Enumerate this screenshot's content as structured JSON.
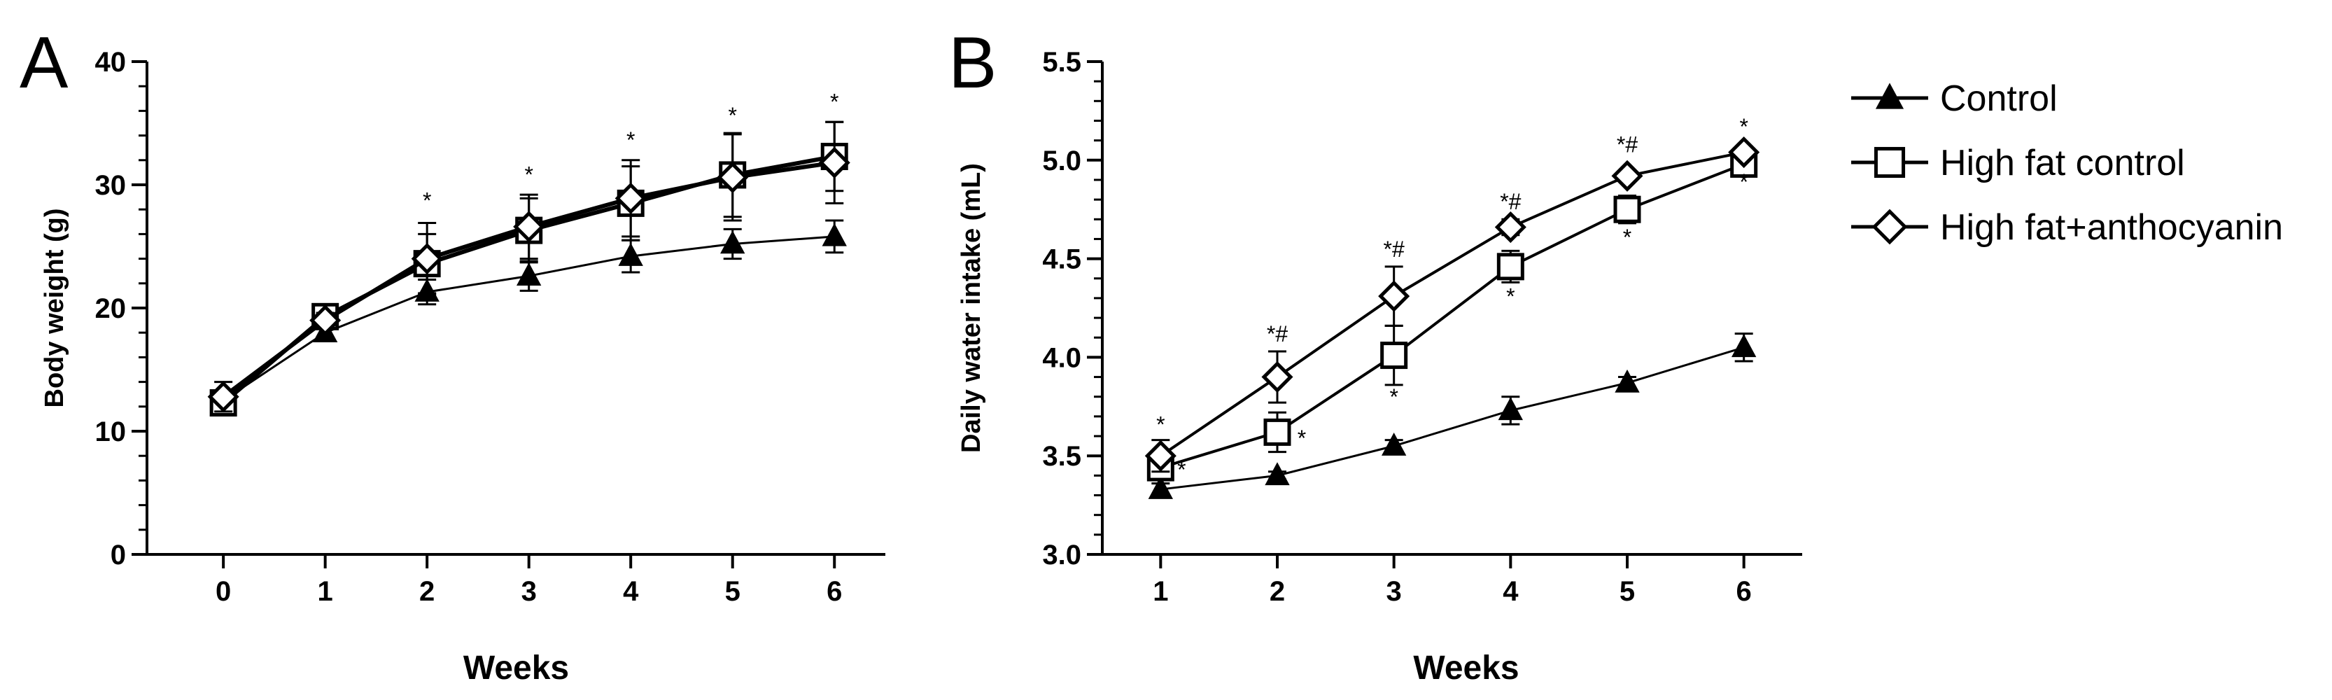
{
  "chart_data": [
    {
      "panel": "A",
      "type": "line",
      "xlabel": "Weeks",
      "ylabel": "Body weight  (g)",
      "x": [
        0,
        1,
        2,
        3,
        4,
        5,
        6
      ],
      "xlim": [
        -0.75,
        6.5
      ],
      "ylim": [
        0,
        40
      ],
      "xticks": [
        0,
        1,
        2,
        3,
        4,
        5,
        6
      ],
      "yticks": [
        0,
        10,
        20,
        30,
        40
      ],
      "series": [
        {
          "name": "Control",
          "marker": "triangle",
          "lineWidth": 3,
          "values": [
            12.5,
            18.0,
            21.3,
            22.6,
            24.2,
            25.2,
            25.8
          ],
          "errors": [
            0.8,
            0.6,
            1.0,
            1.2,
            1.3,
            1.2,
            1.3
          ]
        },
        {
          "name": "High fat control",
          "marker": "square",
          "lineWidth": 6,
          "values": [
            12.3,
            19.3,
            23.6,
            26.3,
            28.5,
            30.8,
            32.3
          ],
          "errors": [
            0.8,
            0.8,
            2.4,
            2.6,
            3.0,
            3.4,
            2.8
          ]
        },
        {
          "name": "High fat+anthocyanin",
          "marker": "diamond",
          "lineWidth": 6,
          "values": [
            12.8,
            19.0,
            24.0,
            26.6,
            28.9,
            30.6,
            31.8
          ],
          "errors": [
            1.2,
            0.6,
            2.9,
            2.6,
            3.1,
            3.5,
            3.3
          ]
        }
      ],
      "annotations": [
        {
          "text": "*",
          "x": 2,
          "y": 28.1
        },
        {
          "text": "*",
          "x": 3,
          "y": 30.2
        },
        {
          "text": "*",
          "x": 4,
          "y": 33.0
        },
        {
          "text": "*",
          "x": 5,
          "y": 35.0
        },
        {
          "text": "*",
          "x": 6,
          "y": 36.1
        }
      ]
    },
    {
      "panel": "B",
      "type": "line",
      "xlabel": "Weeks",
      "ylabel": "Daily water intake (mL)",
      "x": [
        1,
        2,
        3,
        4,
        5,
        6
      ],
      "xlim": [
        0.5,
        6.5
      ],
      "ylim": [
        3.0,
        5.5
      ],
      "xticks": [
        1,
        2,
        3,
        4,
        5,
        6
      ],
      "yticks": [
        3.0,
        3.5,
        4.0,
        4.5,
        5.0,
        5.5
      ],
      "series": [
        {
          "name": "Control",
          "marker": "triangle",
          "lineWidth": 3,
          "values": [
            3.33,
            3.4,
            3.55,
            3.73,
            3.87,
            4.05
          ],
          "errors": [
            0.03,
            0.02,
            0.03,
            0.07,
            0.03,
            0.07
          ]
        },
        {
          "name": "High fat control",
          "marker": "square",
          "lineWidth": 4,
          "values": [
            3.44,
            3.62,
            4.01,
            4.46,
            4.75,
            4.98
          ],
          "errors": [
            0.04,
            0.1,
            0.15,
            0.08,
            0.07,
            0.04
          ]
        },
        {
          "name": "High fat+anthocyanin",
          "marker": "diamond",
          "lineWidth": 4,
          "values": [
            3.5,
            3.9,
            4.31,
            4.66,
            4.92,
            5.04
          ],
          "errors": [
            0.08,
            0.13,
            0.15,
            0.04,
            0.02,
            0.02
          ]
        }
      ],
      "annotations": [
        {
          "text": "*",
          "x": 1,
          "y": 3.62
        },
        {
          "text": "*",
          "x": 1.18,
          "y": 3.39
        },
        {
          "text": "*#",
          "x": 2,
          "y": 4.08
        },
        {
          "text": "*",
          "x": 2.21,
          "y": 3.55
        },
        {
          "text": "*#",
          "x": 3,
          "y": 4.51
        },
        {
          "text": "*",
          "x": 3,
          "y": 3.76
        },
        {
          "text": "*#",
          "x": 4,
          "y": 4.75
        },
        {
          "text": "*",
          "x": 4,
          "y": 4.27
        },
        {
          "text": "*#",
          "x": 5,
          "y": 5.04
        },
        {
          "text": "*",
          "x": 5,
          "y": 4.57
        },
        {
          "text": "*",
          "x": 6,
          "y": 5.13
        },
        {
          "text": "*",
          "x": 6,
          "y": 4.85
        }
      ]
    }
  ],
  "legend": {
    "position": "right",
    "items": [
      {
        "label": "Control",
        "marker": "triangle"
      },
      {
        "label": "High fat control",
        "marker": "square"
      },
      {
        "label": "High fat+anthocyanin",
        "marker": "diamond"
      }
    ]
  },
  "colors": {
    "ink": "#000000",
    "marker_fill": "#ffffff",
    "background": "#ffffff"
  }
}
